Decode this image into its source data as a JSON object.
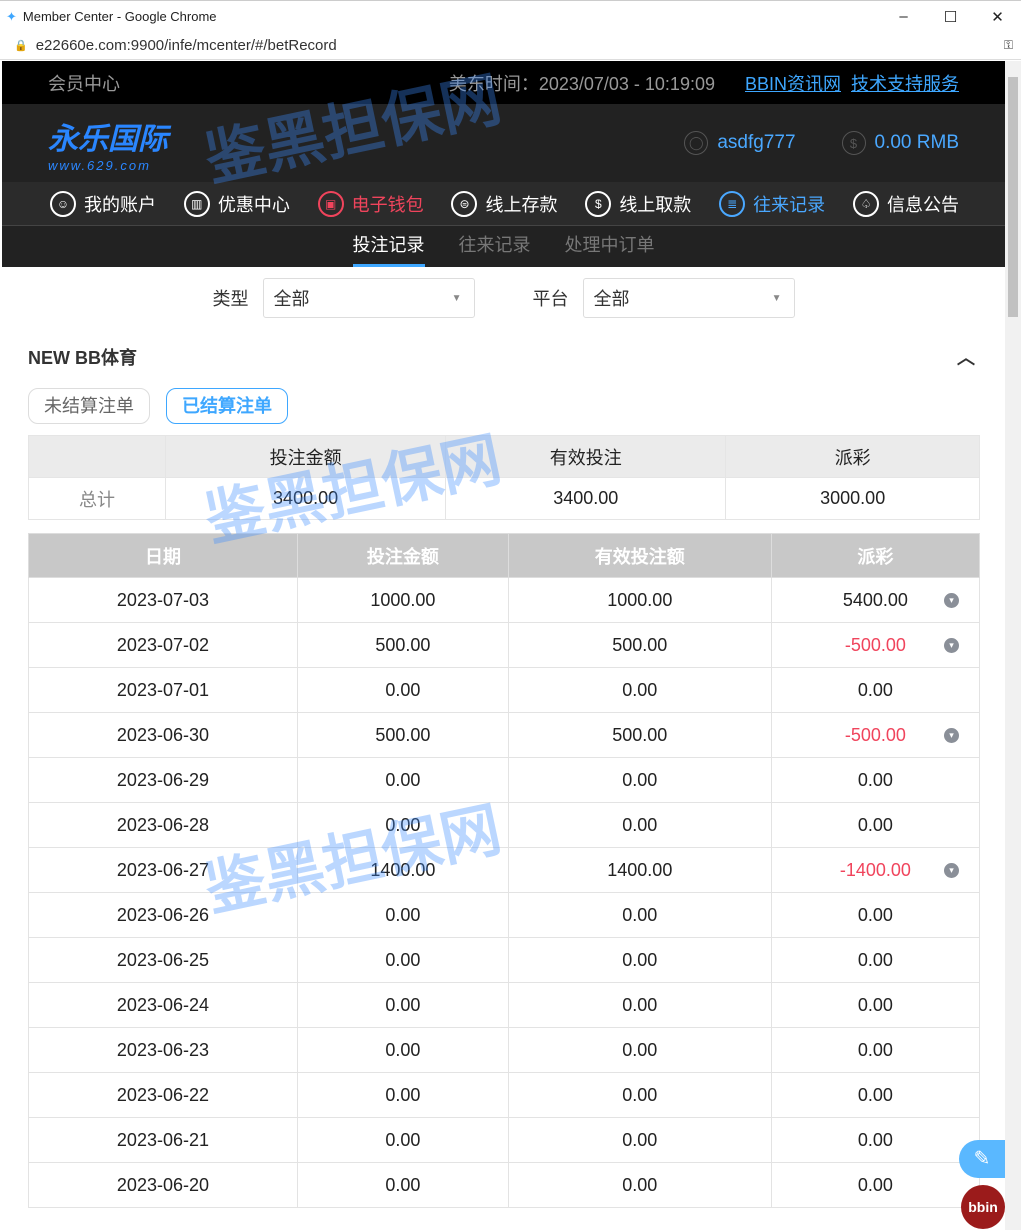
{
  "browser": {
    "title": "Member Center - Google Chrome",
    "url": "e22660e.com:9900/infe/mcenter/#/betRecord"
  },
  "topbar": {
    "label": "会员中心",
    "time": "美东时间：2023/07/03 - 10:19:09",
    "links": [
      "BBIN资讯网",
      "技术支持服务"
    ]
  },
  "header": {
    "logo": "永乐国际",
    "logo_url": "www.629.com",
    "username": "asdfg777",
    "balance": "0.00 RMB"
  },
  "nav": [
    {
      "label": "我的账户",
      "icon": "user-icon"
    },
    {
      "label": "优惠中心",
      "icon": "gift-icon"
    },
    {
      "label": "电子钱包",
      "icon": "wallet-icon",
      "state": "highlight"
    },
    {
      "label": "线上存款",
      "icon": "deposit-icon"
    },
    {
      "label": "线上取款",
      "icon": "withdraw-icon"
    },
    {
      "label": "往来记录",
      "icon": "record-icon",
      "state": "active"
    },
    {
      "label": "信息公告",
      "icon": "bell-icon"
    }
  ],
  "subtabs": [
    {
      "label": "投注记录",
      "active": true
    },
    {
      "label": "往来记录"
    },
    {
      "label": "处理中订单"
    }
  ],
  "filters": {
    "type_label": "类型",
    "type_value": "全部",
    "platform_label": "平台",
    "platform_value": "全部"
  },
  "section": {
    "title": "NEW BB体育",
    "buttons": [
      {
        "label": "未结算注单"
      },
      {
        "label": "已结算注单",
        "active": true
      }
    ]
  },
  "summary": {
    "headers": [
      "投注金额",
      "有效投注",
      "派彩"
    ],
    "row_label": "总计",
    "values": [
      "3400.00",
      "3400.00",
      "3000.00"
    ]
  },
  "table": {
    "headers": [
      "日期",
      "投注金额",
      "有效投注额",
      "派彩"
    ],
    "rows": [
      [
        "2023-07-03",
        "1000.00",
        "1000.00",
        "5400.00",
        true
      ],
      [
        "2023-07-02",
        "500.00",
        "500.00",
        "-500.00",
        true
      ],
      [
        "2023-07-01",
        "0.00",
        "0.00",
        "0.00",
        false
      ],
      [
        "2023-06-30",
        "500.00",
        "500.00",
        "-500.00",
        true
      ],
      [
        "2023-06-29",
        "0.00",
        "0.00",
        "0.00",
        false
      ],
      [
        "2023-06-28",
        "0.00",
        "0.00",
        "0.00",
        false
      ],
      [
        "2023-06-27",
        "1400.00",
        "1400.00",
        "-1400.00",
        true
      ],
      [
        "2023-06-26",
        "0.00",
        "0.00",
        "0.00",
        false
      ],
      [
        "2023-06-25",
        "0.00",
        "0.00",
        "0.00",
        false
      ],
      [
        "2023-06-24",
        "0.00",
        "0.00",
        "0.00",
        false
      ],
      [
        "2023-06-23",
        "0.00",
        "0.00",
        "0.00",
        false
      ],
      [
        "2023-06-22",
        "0.00",
        "0.00",
        "0.00",
        false
      ],
      [
        "2023-06-21",
        "0.00",
        "0.00",
        "0.00",
        false
      ],
      [
        "2023-06-20",
        "0.00",
        "0.00",
        "0.00",
        false
      ]
    ]
  },
  "watermark": "鉴黑担保网",
  "colors": {
    "accent": "#3ea7ff",
    "negative": "#f0445c",
    "topbar": "#000000",
    "header": "#222222"
  }
}
